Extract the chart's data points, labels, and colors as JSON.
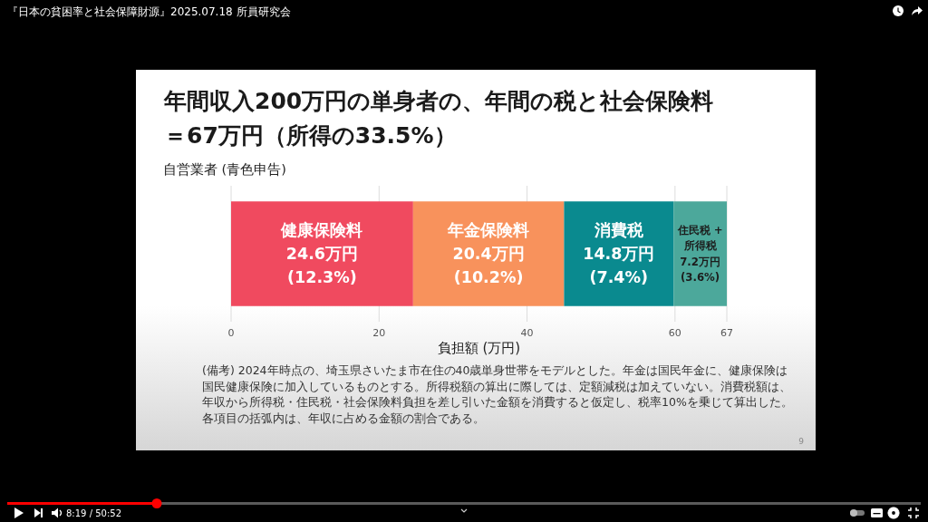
{
  "chart_data": {
    "type": "bar",
    "orientation": "horizontal",
    "stacked": true,
    "title": "年間収入200万円の単身者の、年間の税と社会保険料＝67万円（所得の33.5%）",
    "categories": [
      null
    ],
    "ylabel": "自営業者 (青色申告)",
    "xlabel": "負担額 (万円)",
    "xlim": [
      0,
      67
    ],
    "xticks": [
      0,
      20,
      40,
      60,
      67
    ],
    "grid": "x",
    "series": [
      {
        "name": "健康保険料",
        "color": "#f04a5f",
        "values": [
          24.6
        ],
        "value_labels": [
          "24.6万円\n(12.3%)"
        ]
      },
      {
        "name": "年金保険料",
        "color": "#f8925c",
        "values": [
          20.4
        ],
        "value_labels": [
          "20.4万円\n(10.2%)"
        ]
      },
      {
        "name": "消費税",
        "color": "#0a8a8f",
        "values": [
          14.8
        ],
        "value_labels": [
          "14.8万円\n(7.4%)"
        ]
      },
      {
        "name": "住民税 +\n所得税",
        "color": "#4ca89b",
        "values": [
          7.2
        ],
        "value_labels": [
          "7.2万円\n(3.6%)"
        ]
      }
    ],
    "annotations": [
      "(備考) 2024年時点の、埼玉県さいたま市在住の40歳単身世帯をモデルとした。年金は国民年金に、健康保険は国民健康保険に加入しているものとする。所得税額の算出に際しては、定額減税は加えていない。消費税額は、年収から所得税・住民税・社会保険料負担を差し引いた金額を消費すると仮定し、税率10%を乗じて算出した。各項目の括弧内は、年収に占める金額の割合である。",
      "9",
      "『日本の貧困率と社会保障財源』2025.07.18 所員研究会",
      "8:19 / 50:52"
    ]
  }
}
